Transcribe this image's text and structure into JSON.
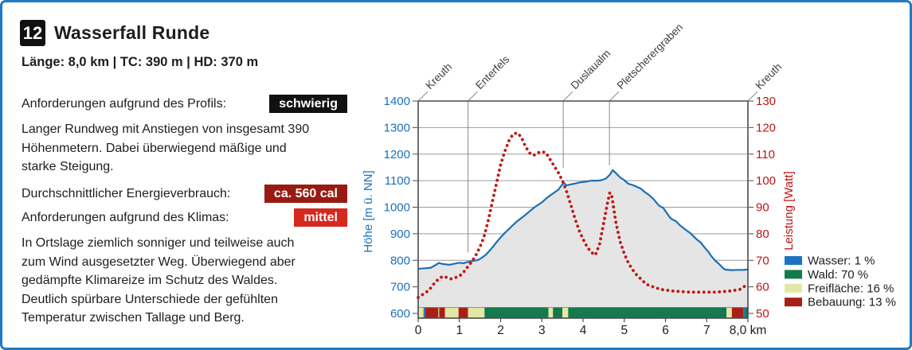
{
  "left_panel": {
    "route_number": "12",
    "title": "Wasserfall Runde",
    "stats_line": "Länge: 8,0 km | TC: 390 m | HD: 370 m",
    "profile_requirement": {
      "label": "Anforderungen aufgrund des Profils:",
      "badge": "schwierig",
      "badge_color": "#111111"
    },
    "description_1": "Langer Rundweg mit Anstiegen von insgesamt 390\nHöhenmetern. Dabei überwiegend mäßige und\nstarke Steigung.",
    "energy": {
      "label": "Durchschnittlicher Energieverbrauch:",
      "badge": "ca. 560 cal",
      "badge_color": "#971b12"
    },
    "climate_requirement": {
      "label": "Anforderungen aufgrund des Klimas:",
      "badge": "mittel",
      "badge_color": "#d6281e"
    },
    "description_2": "In Ortslage ziemlich sonniger und teilweise auch\nzum Wind ausgesetzter Weg. Überwiegend aber\ngedämpfte Klimareize im Schutz des Waldes.\nDeutlich spürbare Unterschiede der gefühlten\nTemperatur zwischen Tallage und Berg."
  },
  "chart_data": {
    "type": "line",
    "title": "",
    "x_label_unit": "km",
    "x_range": [
      0,
      8
    ],
    "x_tick_labels": [
      "0",
      "1",
      "2",
      "3",
      "4",
      "5",
      "6",
      "7",
      "8,0 km"
    ],
    "left_axis": {
      "label": "Höhe [m ü. NN]",
      "range": [
        600,
        1400
      ],
      "tick_step": 100,
      "color": "#1a70bc"
    },
    "right_axis": {
      "label": "Leistung [Watt]",
      "range": [
        50,
        130
      ],
      "tick_step": 10,
      "color": "#c01414"
    },
    "grid": "horizontal",
    "waypoints": [
      {
        "label": "Kreuth",
        "km": 0,
        "line_to_elev": null
      },
      {
        "label": "Enterfels",
        "km": 1.21,
        "line_to_elev": 830
      },
      {
        "label": "Duslaualm",
        "km": 3.52,
        "line_to_elev": 1148
      },
      {
        "label": "Pletscherergraben",
        "km": 4.64,
        "line_to_elev": 1158
      },
      {
        "label": "Kreuth",
        "km": 8,
        "line_to_elev": null
      }
    ],
    "series": [
      {
        "name": "Höhe",
        "axis": "left",
        "unit": "m ü. NN",
        "style": "area",
        "color": "#1c6fb5",
        "fill": "#e5e5e5",
        "points": [
          [
            0,
            768
          ],
          [
            0.15,
            770
          ],
          [
            0.3,
            772
          ],
          [
            0.4,
            780
          ],
          [
            0.5,
            790
          ],
          [
            0.6,
            786
          ],
          [
            0.75,
            783
          ],
          [
            0.9,
            788
          ],
          [
            1.0,
            791
          ],
          [
            1.1,
            789
          ],
          [
            1.2,
            794
          ],
          [
            1.3,
            797
          ],
          [
            1.45,
            801
          ],
          [
            1.55,
            810
          ],
          [
            1.65,
            822
          ],
          [
            1.8,
            848
          ],
          [
            1.9,
            868
          ],
          [
            2.0,
            886
          ],
          [
            2.1,
            903
          ],
          [
            2.2,
            918
          ],
          [
            2.3,
            933
          ],
          [
            2.4,
            947
          ],
          [
            2.5,
            959
          ],
          [
            2.6,
            971
          ],
          [
            2.7,
            984
          ],
          [
            2.8,
            997
          ],
          [
            2.9,
            1008
          ],
          [
            3.0,
            1018
          ],
          [
            3.1,
            1032
          ],
          [
            3.2,
            1044
          ],
          [
            3.3,
            1055
          ],
          [
            3.4,
            1066
          ],
          [
            3.45,
            1076
          ],
          [
            3.5,
            1086
          ],
          [
            3.55,
            1090
          ],
          [
            3.6,
            1082
          ],
          [
            3.7,
            1086
          ],
          [
            3.8,
            1089
          ],
          [
            3.9,
            1093
          ],
          [
            4.0,
            1095
          ],
          [
            4.1,
            1097
          ],
          [
            4.2,
            1100
          ],
          [
            4.35,
            1100
          ],
          [
            4.45,
            1102
          ],
          [
            4.55,
            1108
          ],
          [
            4.65,
            1122
          ],
          [
            4.72,
            1140
          ],
          [
            4.8,
            1128
          ],
          [
            4.9,
            1112
          ],
          [
            5.0,
            1102
          ],
          [
            5.1,
            1088
          ],
          [
            5.2,
            1084
          ],
          [
            5.3,
            1077
          ],
          [
            5.4,
            1070
          ],
          [
            5.5,
            1057
          ],
          [
            5.6,
            1046
          ],
          [
            5.7,
            1032
          ],
          [
            5.8,
            1014
          ],
          [
            5.85,
            1005
          ],
          [
            5.95,
            997
          ],
          [
            6.0,
            985
          ],
          [
            6.1,
            963
          ],
          [
            6.15,
            955
          ],
          [
            6.25,
            948
          ],
          [
            6.35,
            932
          ],
          [
            6.45,
            920
          ],
          [
            6.55,
            908
          ],
          [
            6.6,
            903
          ],
          [
            6.7,
            888
          ],
          [
            6.75,
            880
          ],
          [
            6.85,
            868
          ],
          [
            6.95,
            848
          ],
          [
            7.05,
            830
          ],
          [
            7.1,
            818
          ],
          [
            7.2,
            800
          ],
          [
            7.3,
            786
          ],
          [
            7.4,
            770
          ],
          [
            7.45,
            765
          ],
          [
            7.6,
            763
          ],
          [
            7.75,
            764
          ],
          [
            7.9,
            764
          ],
          [
            8.0,
            766
          ]
        ]
      },
      {
        "name": "Leistung",
        "axis": "right",
        "unit": "Watt",
        "style": "dotted",
        "color": "#bf1815",
        "points": [
          [
            0,
            56
          ],
          [
            0.1,
            57
          ],
          [
            0.2,
            58
          ],
          [
            0.3,
            59.5
          ],
          [
            0.4,
            61.5
          ],
          [
            0.5,
            63
          ],
          [
            0.6,
            64
          ],
          [
            0.7,
            63.5
          ],
          [
            0.8,
            63
          ],
          [
            0.9,
            63.5
          ],
          [
            1.0,
            64
          ],
          [
            1.1,
            65.5
          ],
          [
            1.2,
            67.5
          ],
          [
            1.3,
            69.5
          ],
          [
            1.4,
            72
          ],
          [
            1.5,
            75
          ],
          [
            1.6,
            79
          ],
          [
            1.7,
            85
          ],
          [
            1.8,
            92
          ],
          [
            1.9,
            99
          ],
          [
            2.0,
            106
          ],
          [
            2.1,
            111
          ],
          [
            2.2,
            115
          ],
          [
            2.3,
            117.5
          ],
          [
            2.4,
            118
          ],
          [
            2.5,
            116.5
          ],
          [
            2.6,
            113
          ],
          [
            2.7,
            110.5
          ],
          [
            2.8,
            109.5
          ],
          [
            2.9,
            110.5
          ],
          [
            3.0,
            111
          ],
          [
            3.1,
            110.5
          ],
          [
            3.2,
            108
          ],
          [
            3.3,
            105.5
          ],
          [
            3.4,
            103
          ],
          [
            3.5,
            100
          ],
          [
            3.6,
            96
          ],
          [
            3.7,
            91
          ],
          [
            3.8,
            86
          ],
          [
            3.9,
            81.5
          ],
          [
            4.0,
            78
          ],
          [
            4.1,
            75
          ],
          [
            4.2,
            73
          ],
          [
            4.3,
            72
          ],
          [
            4.4,
            76
          ],
          [
            4.5,
            84
          ],
          [
            4.6,
            92
          ],
          [
            4.65,
            95.5
          ],
          [
            4.7,
            94
          ],
          [
            4.8,
            84
          ],
          [
            4.9,
            77
          ],
          [
            5.0,
            72.5
          ],
          [
            5.1,
            69
          ],
          [
            5.2,
            66.5
          ],
          [
            5.3,
            64.5
          ],
          [
            5.4,
            63
          ],
          [
            5.5,
            61.5
          ],
          [
            5.6,
            60.5
          ],
          [
            5.7,
            60
          ],
          [
            5.8,
            59.5
          ],
          [
            5.9,
            59
          ],
          [
            6.0,
            58.8
          ],
          [
            6.2,
            58.4
          ],
          [
            6.4,
            58.2
          ],
          [
            6.6,
            58
          ],
          [
            6.8,
            58
          ],
          [
            7.0,
            58
          ],
          [
            7.2,
            58
          ],
          [
            7.4,
            58.2
          ],
          [
            7.6,
            58.5
          ],
          [
            7.8,
            59
          ],
          [
            7.9,
            60
          ],
          [
            8.0,
            61
          ]
        ]
      }
    ],
    "surface_strip": {
      "colors": {
        "wasser": "#1b74bf",
        "wald": "#15794e",
        "freiflaeche": "#e3e7a6",
        "bebauung": "#a81f18"
      },
      "segments": [
        {
          "type": "freiflaeche",
          "from": 0.0,
          "to": 0.13
        },
        {
          "type": "wasser",
          "from": 0.13,
          "to": 0.17
        },
        {
          "type": "bebauung",
          "from": 0.17,
          "to": 0.49
        },
        {
          "type": "freiflaeche",
          "from": 0.49,
          "to": 0.51
        },
        {
          "type": "bebauung",
          "from": 0.51,
          "to": 0.65
        },
        {
          "type": "freiflaeche",
          "from": 0.65,
          "to": 0.98
        },
        {
          "type": "bebauung",
          "from": 0.98,
          "to": 1.21
        },
        {
          "type": "freiflaeche",
          "from": 1.21,
          "to": 1.61
        },
        {
          "type": "wald",
          "from": 1.61,
          "to": 3.16
        },
        {
          "type": "freiflaeche",
          "from": 3.16,
          "to": 3.27
        },
        {
          "type": "wald",
          "from": 3.27,
          "to": 3.5
        },
        {
          "type": "freiflaeche",
          "from": 3.5,
          "to": 3.64
        },
        {
          "type": "wald",
          "from": 3.64,
          "to": 7.48
        },
        {
          "type": "freiflaeche",
          "from": 7.48,
          "to": 7.61
        },
        {
          "type": "bebauung",
          "from": 7.61,
          "to": 7.89
        },
        {
          "type": "wasser",
          "from": 7.89,
          "to": 7.93
        },
        {
          "type": "wald",
          "from": 7.93,
          "to": 8.0
        }
      ]
    },
    "legend": {
      "position": "bottom-right",
      "entries": [
        {
          "key": "wasser",
          "label": "Wasser: 1 %",
          "color": "#1b74bf"
        },
        {
          "key": "wald",
          "label": "Wald: 70 %",
          "color": "#15794e"
        },
        {
          "key": "freiflaeche",
          "label": "Freifläche: 16 %",
          "color": "#e3e7a6"
        },
        {
          "key": "bebauung",
          "label": "Bebauung: 13 %",
          "color": "#a81f18"
        }
      ]
    },
    "style": {
      "grid_color": "#9b9b9b",
      "frame_color": "#4a4a4a",
      "waypoint_line_color": "#8a8a8a",
      "waypoint_text_color": "#3c3c3c",
      "tick_text_color": "#1d1d1b"
    }
  }
}
